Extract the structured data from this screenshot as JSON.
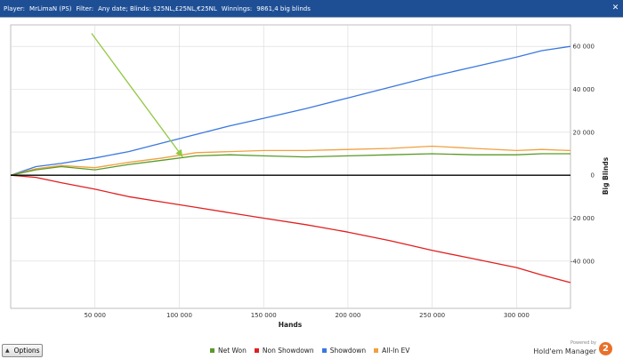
{
  "titlebar": {
    "player_label": "Player:",
    "player_value": "MrLimaN (PS)",
    "filter_label": "Filter:",
    "filter_value": "Any date; Blinds: $25NL,£25NL,€25NL",
    "winnings_label": "Winnings:",
    "winnings_value": "9861,4 big blinds",
    "close_glyph": "✕"
  },
  "footer": {
    "options_label": "Options",
    "legend": [
      {
        "label": "Net Won",
        "color": "#5a9a28"
      },
      {
        "label": "Non Showdown",
        "color": "#e02020"
      },
      {
        "label": "Showdown",
        "color": "#3a78e0"
      },
      {
        "label": "All-In EV",
        "color": "#f0a040"
      }
    ],
    "brand": {
      "powered_by": "Powered by",
      "name": "Hold'em Manager",
      "logo_text": "2"
    }
  },
  "chart_data": {
    "type": "line",
    "xlabel": "Hands",
    "ylabel": "Big Blinds",
    "xlim": [
      0,
      332000
    ],
    "ylim": [
      -62000,
      70000
    ],
    "x_ticks": [
      50000,
      100000,
      150000,
      200000,
      250000,
      300000
    ],
    "x_tick_labels": [
      "50 000",
      "100 000",
      "150 000",
      "200 000",
      "250 000",
      "300 000"
    ],
    "y_ticks": [
      60000,
      40000,
      20000,
      0,
      -20000,
      -40000
    ],
    "y_tick_labels": [
      "60 000",
      "40 000",
      "20 000",
      "0",
      "-20 000",
      "-40 000"
    ],
    "grid": true,
    "legend_position": "bottom",
    "series": [
      {
        "name": "Showdown",
        "color": "#3a78e0",
        "x": [
          0,
          15000,
          30000,
          50000,
          70000,
          90000,
          110000,
          130000,
          150000,
          175000,
          200000,
          225000,
          250000,
          275000,
          300000,
          315000,
          332000
        ],
        "y": [
          0,
          4000,
          5500,
          8000,
          11000,
          15000,
          19000,
          23000,
          26500,
          31000,
          36000,
          41000,
          46000,
          50500,
          55000,
          58000,
          60000
        ]
      },
      {
        "name": "All-In EV",
        "color": "#f0a040",
        "x": [
          0,
          15000,
          30000,
          50000,
          70000,
          90000,
          110000,
          130000,
          150000,
          175000,
          200000,
          225000,
          250000,
          275000,
          300000,
          315000,
          332000
        ],
        "y": [
          0,
          3000,
          4500,
          3500,
          6000,
          8000,
          10500,
          11000,
          11500,
          11500,
          12000,
          12500,
          13500,
          12500,
          11500,
          12000,
          11500
        ]
      },
      {
        "name": "Net Won",
        "color": "#5a9a28",
        "x": [
          0,
          15000,
          30000,
          50000,
          70000,
          90000,
          110000,
          130000,
          150000,
          175000,
          200000,
          225000,
          250000,
          275000,
          300000,
          315000,
          332000
        ],
        "y": [
          0,
          2500,
          4000,
          2500,
          5000,
          7000,
          9000,
          9500,
          9000,
          8500,
          9000,
          9500,
          10000,
          9500,
          9500,
          10000,
          10000
        ]
      },
      {
        "name": "Non Showdown",
        "color": "#e02020",
        "x": [
          0,
          15000,
          30000,
          50000,
          70000,
          90000,
          110000,
          130000,
          150000,
          175000,
          200000,
          225000,
          250000,
          275000,
          300000,
          315000,
          332000
        ],
        "y": [
          0,
          -1000,
          -3500,
          -6500,
          -10000,
          -12500,
          -15000,
          -17500,
          -20000,
          -23000,
          -26500,
          -30500,
          -35000,
          -39000,
          -43000,
          -46500,
          -50000
        ]
      }
    ],
    "annotation": {
      "type": "arrow",
      "color": "#90c840",
      "from": {
        "x": 48000,
        "y": 66000
      },
      "to": {
        "x": 102000,
        "y": 8500
      }
    }
  }
}
